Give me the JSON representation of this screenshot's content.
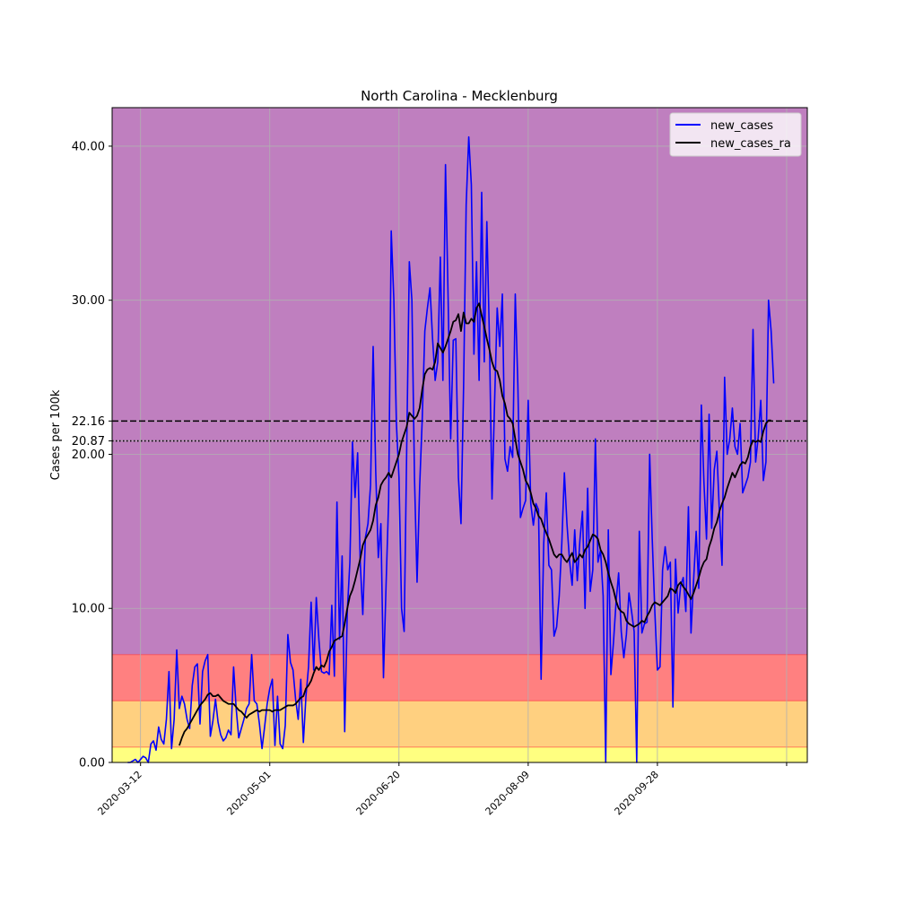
{
  "chart_data": {
    "type": "line",
    "title": "North Carolina - Mecklenburg",
    "xlabel": "",
    "ylabel": "Cases per 100k",
    "x_start": "2020-03-07",
    "x_ticks": [
      "2020-03-12",
      "2020-05-01",
      "2020-06-20",
      "2020-08-09",
      "2020-09-28"
    ],
    "xlim": [
      "2020-03-01",
      "2020-11-25"
    ],
    "ylim": [
      0,
      42.5
    ],
    "y_ticks": [
      0,
      10,
      20,
      20.87,
      22.16,
      30,
      40
    ],
    "y_tick_labels": [
      "0.00",
      "10.00",
      "20.00",
      "20.87",
      "22.16",
      "30.00",
      "40.00"
    ],
    "grid": true,
    "legend_position": "upper right",
    "bands": [
      {
        "from": 0,
        "to": 1,
        "color": "#ffff80"
      },
      {
        "from": 1,
        "to": 4,
        "color": "#ffd080"
      },
      {
        "from": 4,
        "to": 7,
        "color": "#ff8080"
      },
      {
        "from": 7,
        "to": 42.5,
        "color": "#bf7fbf"
      }
    ],
    "hlines": [
      {
        "value": 22.16,
        "style": "dashed",
        "color": "#000000"
      },
      {
        "value": 20.87,
        "style": "dotted",
        "color": "#000000"
      }
    ],
    "series": [
      {
        "name": "new_cases",
        "color": "#0000ff",
        "values": [
          0,
          0,
          0.1,
          0.2,
          0,
          0.2,
          0.4,
          0.3,
          0,
          1.2,
          1.4,
          0.8,
          2.3,
          1.5,
          1.2,
          2.8,
          5.9,
          0.9,
          2.8,
          7.3,
          3.5,
          4.3,
          3.8,
          2.8,
          2.2,
          5.0,
          6.2,
          6.4,
          2.5,
          5.9,
          6.6,
          7.0,
          1.7,
          2.7,
          4.1,
          2.6,
          1.8,
          1.4,
          1.6,
          2.1,
          1.8,
          6.2,
          3.5,
          1.6,
          2.2,
          2.8,
          3.5,
          3.8,
          7.0,
          4.0,
          3.8,
          2.5,
          0.9,
          2.3,
          3.8,
          4.8,
          5.4,
          1.1,
          4.3,
          1.2,
          0.9,
          2.4,
          8.3,
          6.5,
          6.0,
          4.1,
          2.8,
          5.4,
          1.3,
          4.3,
          6.2,
          10.4,
          6.0,
          10.7,
          8.0,
          5.9,
          5.8,
          5.9,
          5.7,
          10.2,
          5.6,
          16.9,
          8.0,
          13.4,
          2.0,
          9.8,
          13.0,
          20.8,
          17.2,
          20.1,
          13.0,
          9.6,
          14.6,
          15.5,
          18.0,
          27.0,
          18.9,
          13.3,
          15.5,
          5.5,
          11.5,
          17.0,
          34.5,
          30.1,
          22.0,
          18.5,
          10.0,
          8.5,
          20.5,
          32.5,
          30.0,
          18.5,
          11.7,
          17.9,
          22.3,
          28.0,
          29.5,
          30.8,
          27.5,
          24.8,
          26.0,
          32.8,
          24.8,
          38.8,
          30.2,
          21.0,
          27.4,
          27.5,
          18.5,
          15.5,
          24.4,
          36.2,
          40.6,
          37.5,
          26.5,
          32.5,
          24.8,
          37.0,
          26.0,
          35.1,
          27.5,
          17.1,
          23.4,
          29.5,
          27.0,
          30.4,
          19.7,
          18.9,
          20.5,
          19.8,
          30.4,
          24.5,
          15.9,
          16.5,
          17.0,
          23.5,
          16.8,
          15.4,
          16.8,
          16.4,
          5.4,
          14.2,
          17.5,
          12.8,
          12.5,
          8.2,
          8.8,
          10.8,
          14.2,
          18.8,
          15.5,
          13.1,
          11.5,
          15.1,
          11.8,
          14.4,
          16.3,
          10.0,
          17.8,
          11.1,
          12.5,
          21.0,
          13.0,
          13.8,
          10.8,
          0,
          15.1,
          5.7,
          7.8,
          10.4,
          12.3,
          8.5,
          6.8,
          8.3,
          11.0,
          9.8,
          8.5,
          0,
          15.0,
          8.4,
          9.0,
          9.1,
          20.0,
          14.5,
          9.8,
          6.0,
          6.2,
          12.5,
          14.0,
          12.5,
          13.0,
          3.6,
          13.2,
          9.7,
          11.5,
          12.0,
          9.8,
          16.6,
          8.4,
          11.8,
          15.0,
          11.3,
          23.2,
          18.2,
          14.5,
          22.6,
          15.2,
          19.0,
          20.2,
          16.2,
          12.8,
          25.0,
          20.0,
          21.0,
          23.0,
          20.5,
          20.0,
          22.0,
          17.5,
          18.0,
          18.5,
          19.5,
          28.1,
          19.5,
          21.1,
          23.5,
          18.3,
          19.5,
          30.0,
          28.0,
          24.6
        ]
      },
      {
        "name": "new_cases_ra",
        "color": "#000000",
        "offset": 20,
        "values": [
          1.1,
          1.6,
          2.0,
          2.2,
          2.5,
          2.8,
          3.1,
          3.4,
          3.7,
          3.9,
          4.1,
          4.4,
          4.5,
          4.3,
          4.3,
          4.4,
          4.2,
          4.0,
          3.9,
          3.8,
          3.8,
          3.8,
          3.6,
          3.4,
          3.3,
          3.1,
          2.9,
          3.1,
          3.2,
          3.3,
          3.4,
          3.3,
          3.4,
          3.4,
          3.4,
          3.4,
          3.3,
          3.4,
          3.4,
          3.4,
          3.5,
          3.6,
          3.7,
          3.7,
          3.7,
          3.8,
          4.0,
          4.2,
          4.3,
          4.8,
          5.0,
          5.3,
          5.8,
          6.2,
          6.0,
          6.3,
          6.2,
          6.6,
          7.2,
          7.5,
          7.9,
          8.0,
          8.1,
          8.2,
          9.0,
          10.0,
          10.8,
          11.2,
          11.8,
          12.5,
          13.2,
          14.1,
          14.5,
          14.8,
          15.1,
          15.7,
          16.7,
          17.2,
          18.0,
          18.3,
          18.5,
          18.8,
          18.5,
          19.0,
          19.5,
          20.0,
          20.8,
          21.3,
          21.8,
          22.7,
          22.5,
          22.3,
          22.5,
          23.0,
          24.2,
          25.2,
          25.5,
          25.6,
          25.5,
          26.0,
          27.2,
          26.9,
          26.6,
          27.0,
          27.5,
          28.0,
          28.6,
          28.7,
          29.1,
          28.0,
          29.2,
          28.5,
          28.5,
          28.8,
          28.6,
          29.5,
          29.8,
          29.0,
          28.3,
          27.5,
          26.8,
          26.0,
          25.5,
          25.4,
          24.8,
          23.8,
          23.3,
          22.5,
          22.3,
          22.0,
          21.0,
          20.0,
          19.5,
          19.0,
          18.3,
          18.0,
          17.5,
          16.8,
          16.5,
          16.0,
          15.8,
          15.3,
          14.9,
          14.5,
          14.0,
          13.5,
          13.3,
          13.5,
          13.5,
          13.2,
          13.0,
          13.3,
          13.6,
          13.0,
          13.2,
          13.5,
          13.3,
          13.8,
          14.0,
          14.4,
          14.8,
          14.7,
          14.5,
          13.8,
          13.5,
          13.0,
          12.3,
          11.7,
          11.2,
          10.5,
          10.0,
          9.8,
          9.7,
          9.2,
          9.0,
          8.9,
          8.8,
          8.9,
          9.0,
          9.2,
          9.1,
          9.5,
          9.8,
          10.2,
          10.4,
          10.3,
          10.2,
          10.4,
          10.6,
          10.8,
          11.3,
          11.2,
          11.0,
          11.5,
          11.7,
          11.4,
          11.2,
          10.9,
          10.6,
          11.0,
          11.5,
          12.0,
          12.6,
          13.0,
          13.2,
          14.0,
          14.5,
          15.2,
          15.6,
          16.3,
          16.8,
          17.2,
          17.8,
          18.3,
          18.8,
          18.5,
          18.9,
          19.3,
          19.5,
          19.4,
          19.8,
          20.5,
          20.9,
          20.8,
          20.9,
          20.8,
          21.5,
          22.0,
          22.2,
          22.2
        ]
      }
    ]
  }
}
